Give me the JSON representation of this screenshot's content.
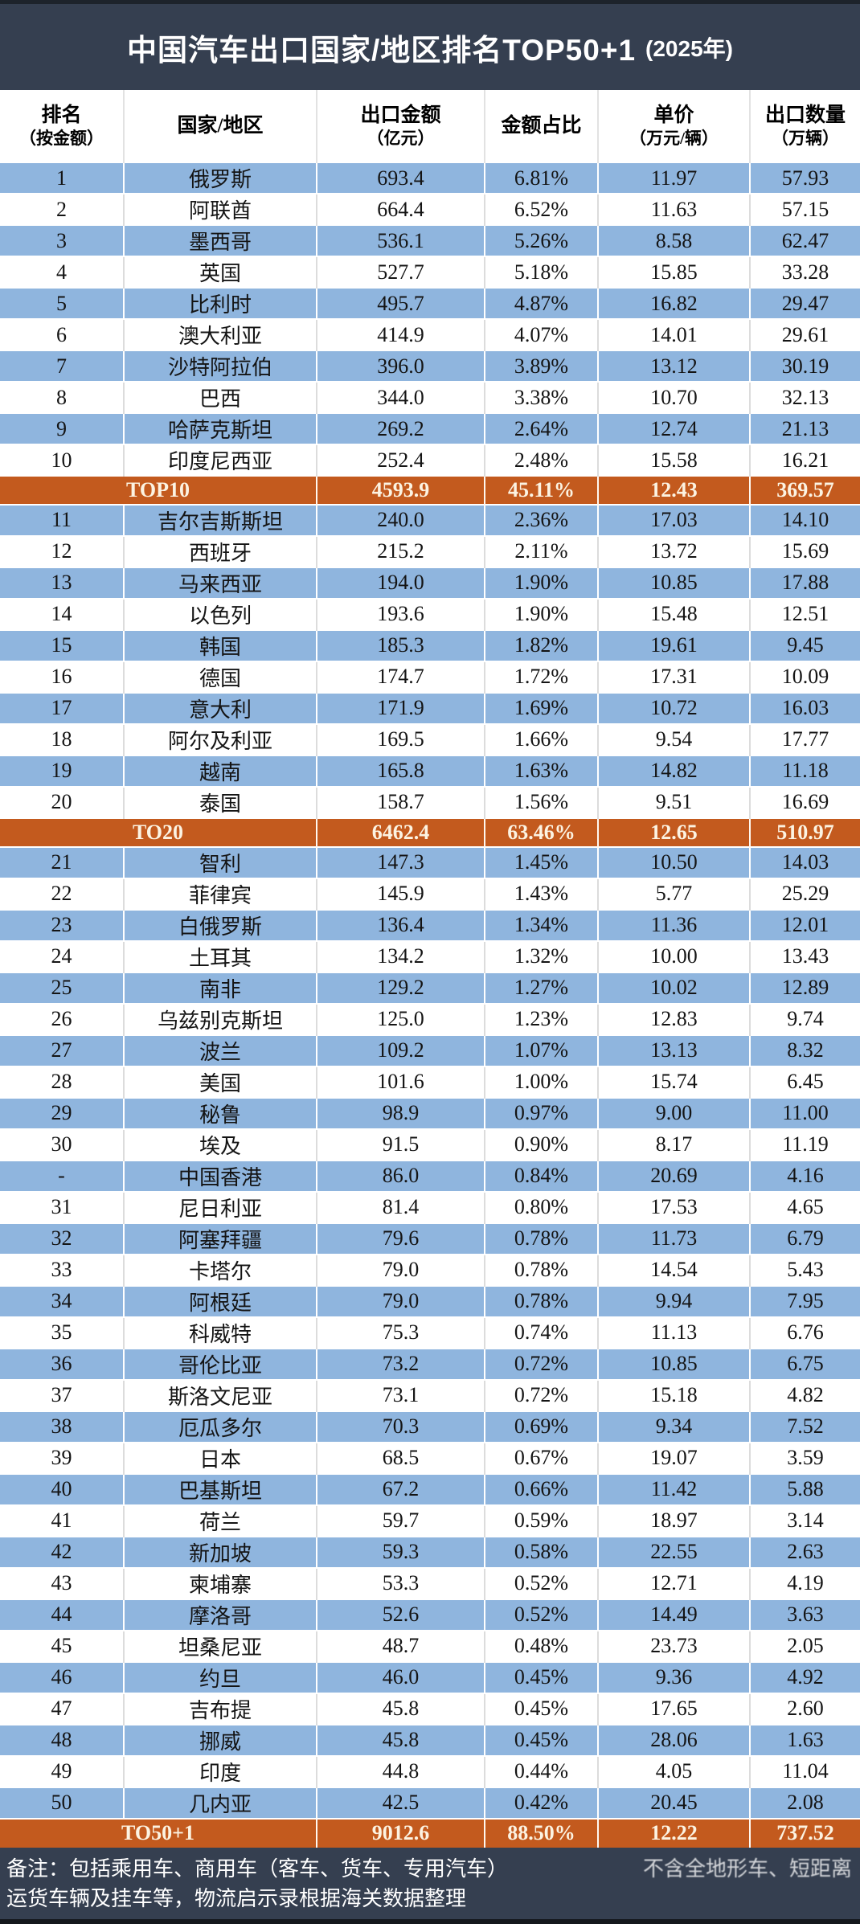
{
  "title": {
    "main": "中国汽车出口国家/地区排名TOP50+1",
    "year_suffix": "(2025年)"
  },
  "colors": {
    "band_dark": "#353F50",
    "row_blue": "#8FB5DE",
    "row_white": "#FFFFFF",
    "summary_orange": "#C35A1E",
    "summary_text": "#FCF3E2",
    "body_text": "#141414"
  },
  "footer": {
    "note_line1_left": "备注：包括乘用车、商用车（客车、货车、专用汽车）",
    "note_line1_right": "不含全地形车、短距离",
    "note_line2": "运货车辆及挂车等，物流启示录根据海关数据整理"
  },
  "chart_data": {
    "type": "table",
    "title": "中国汽车出口国家/地区排名TOP50+1 (2025年)",
    "columns": [
      {
        "line1": "排名",
        "line2": "（按金额）"
      },
      {
        "line1": "国家/地区",
        "line2": ""
      },
      {
        "line1": "出口金额",
        "line2": "（亿元）"
      },
      {
        "line1": "金额占比",
        "line2": ""
      },
      {
        "line1": "单价",
        "line2": "（万元/辆）"
      },
      {
        "line1": "出口数量",
        "line2": "（万辆）"
      }
    ],
    "rows": [
      {
        "type": "data",
        "rank": "1",
        "country": "俄罗斯",
        "amount": "693.4",
        "share": "6.81%",
        "price": "11.97",
        "qty": "57.93"
      },
      {
        "type": "data",
        "rank": "2",
        "country": "阿联酋",
        "amount": "664.4",
        "share": "6.52%",
        "price": "11.63",
        "qty": "57.15"
      },
      {
        "type": "data",
        "rank": "3",
        "country": "墨西哥",
        "amount": "536.1",
        "share": "5.26%",
        "price": "8.58",
        "qty": "62.47"
      },
      {
        "type": "data",
        "rank": "4",
        "country": "英国",
        "amount": "527.7",
        "share": "5.18%",
        "price": "15.85",
        "qty": "33.28"
      },
      {
        "type": "data",
        "rank": "5",
        "country": "比利时",
        "amount": "495.7",
        "share": "4.87%",
        "price": "16.82",
        "qty": "29.47"
      },
      {
        "type": "data",
        "rank": "6",
        "country": "澳大利亚",
        "amount": "414.9",
        "share": "4.07%",
        "price": "14.01",
        "qty": "29.61"
      },
      {
        "type": "data",
        "rank": "7",
        "country": "沙特阿拉伯",
        "amount": "396.0",
        "share": "3.89%",
        "price": "13.12",
        "qty": "30.19"
      },
      {
        "type": "data",
        "rank": "8",
        "country": "巴西",
        "amount": "344.0",
        "share": "3.38%",
        "price": "10.70",
        "qty": "32.13"
      },
      {
        "type": "data",
        "rank": "9",
        "country": "哈萨克斯坦",
        "amount": "269.2",
        "share": "2.64%",
        "price": "12.74",
        "qty": "21.13"
      },
      {
        "type": "data",
        "rank": "10",
        "country": "印度尼西亚",
        "amount": "252.4",
        "share": "2.48%",
        "price": "15.58",
        "qty": "16.21"
      },
      {
        "type": "summary",
        "label": "TOP10",
        "amount": "4593.9",
        "share": "45.11%",
        "price": "12.43",
        "qty": "369.57"
      },
      {
        "type": "data",
        "rank": "11",
        "country": "吉尔吉斯斯坦",
        "amount": "240.0",
        "share": "2.36%",
        "price": "17.03",
        "qty": "14.10"
      },
      {
        "type": "data",
        "rank": "12",
        "country": "西班牙",
        "amount": "215.2",
        "share": "2.11%",
        "price": "13.72",
        "qty": "15.69"
      },
      {
        "type": "data",
        "rank": "13",
        "country": "马来西亚",
        "amount": "194.0",
        "share": "1.90%",
        "price": "10.85",
        "qty": "17.88"
      },
      {
        "type": "data",
        "rank": "14",
        "country": "以色列",
        "amount": "193.6",
        "share": "1.90%",
        "price": "15.48",
        "qty": "12.51"
      },
      {
        "type": "data",
        "rank": "15",
        "country": "韩国",
        "amount": "185.3",
        "share": "1.82%",
        "price": "19.61",
        "qty": "9.45"
      },
      {
        "type": "data",
        "rank": "16",
        "country": "德国",
        "amount": "174.7",
        "share": "1.72%",
        "price": "17.31",
        "qty": "10.09"
      },
      {
        "type": "data",
        "rank": "17",
        "country": "意大利",
        "amount": "171.9",
        "share": "1.69%",
        "price": "10.72",
        "qty": "16.03"
      },
      {
        "type": "data",
        "rank": "18",
        "country": "阿尔及利亚",
        "amount": "169.5",
        "share": "1.66%",
        "price": "9.54",
        "qty": "17.77"
      },
      {
        "type": "data",
        "rank": "19",
        "country": "越南",
        "amount": "165.8",
        "share": "1.63%",
        "price": "14.82",
        "qty": "11.18"
      },
      {
        "type": "data",
        "rank": "20",
        "country": "泰国",
        "amount": "158.7",
        "share": "1.56%",
        "price": "9.51",
        "qty": "16.69"
      },
      {
        "type": "summary",
        "label": "TO20",
        "amount": "6462.4",
        "share": "63.46%",
        "price": "12.65",
        "qty": "510.97"
      },
      {
        "type": "data",
        "rank": "21",
        "country": "智利",
        "amount": "147.3",
        "share": "1.45%",
        "price": "10.50",
        "qty": "14.03"
      },
      {
        "type": "data",
        "rank": "22",
        "country": "菲律宾",
        "amount": "145.9",
        "share": "1.43%",
        "price": "5.77",
        "qty": "25.29"
      },
      {
        "type": "data",
        "rank": "23",
        "country": "白俄罗斯",
        "amount": "136.4",
        "share": "1.34%",
        "price": "11.36",
        "qty": "12.01"
      },
      {
        "type": "data",
        "rank": "24",
        "country": "土耳其",
        "amount": "134.2",
        "share": "1.32%",
        "price": "10.00",
        "qty": "13.43"
      },
      {
        "type": "data",
        "rank": "25",
        "country": "南非",
        "amount": "129.2",
        "share": "1.27%",
        "price": "10.02",
        "qty": "12.89"
      },
      {
        "type": "data",
        "rank": "26",
        "country": "乌兹别克斯坦",
        "amount": "125.0",
        "share": "1.23%",
        "price": "12.83",
        "qty": "9.74"
      },
      {
        "type": "data",
        "rank": "27",
        "country": "波兰",
        "amount": "109.2",
        "share": "1.07%",
        "price": "13.13",
        "qty": "8.32"
      },
      {
        "type": "data",
        "rank": "28",
        "country": "美国",
        "amount": "101.6",
        "share": "1.00%",
        "price": "15.74",
        "qty": "6.45"
      },
      {
        "type": "data",
        "rank": "29",
        "country": "秘鲁",
        "amount": "98.9",
        "share": "0.97%",
        "price": "9.00",
        "qty": "11.00"
      },
      {
        "type": "data",
        "rank": "30",
        "country": "埃及",
        "amount": "91.5",
        "share": "0.90%",
        "price": "8.17",
        "qty": "11.19"
      },
      {
        "type": "data",
        "rank": "-",
        "country": "中国香港",
        "amount": "86.0",
        "share": "0.84%",
        "price": "20.69",
        "qty": "4.16"
      },
      {
        "type": "data",
        "rank": "31",
        "country": "尼日利亚",
        "amount": "81.4",
        "share": "0.80%",
        "price": "17.53",
        "qty": "4.65"
      },
      {
        "type": "data",
        "rank": "32",
        "country": "阿塞拜疆",
        "amount": "79.6",
        "share": "0.78%",
        "price": "11.73",
        "qty": "6.79"
      },
      {
        "type": "data",
        "rank": "33",
        "country": "卡塔尔",
        "amount": "79.0",
        "share": "0.78%",
        "price": "14.54",
        "qty": "5.43"
      },
      {
        "type": "data",
        "rank": "34",
        "country": "阿根廷",
        "amount": "79.0",
        "share": "0.78%",
        "price": "9.94",
        "qty": "7.95"
      },
      {
        "type": "data",
        "rank": "35",
        "country": "科威特",
        "amount": "75.3",
        "share": "0.74%",
        "price": "11.13",
        "qty": "6.76"
      },
      {
        "type": "data",
        "rank": "36",
        "country": "哥伦比亚",
        "amount": "73.2",
        "share": "0.72%",
        "price": "10.85",
        "qty": "6.75"
      },
      {
        "type": "data",
        "rank": "37",
        "country": "斯洛文尼亚",
        "amount": "73.1",
        "share": "0.72%",
        "price": "15.18",
        "qty": "4.82"
      },
      {
        "type": "data",
        "rank": "38",
        "country": "厄瓜多尔",
        "amount": "70.3",
        "share": "0.69%",
        "price": "9.34",
        "qty": "7.52"
      },
      {
        "type": "data",
        "rank": "39",
        "country": "日本",
        "amount": "68.5",
        "share": "0.67%",
        "price": "19.07",
        "qty": "3.59"
      },
      {
        "type": "data",
        "rank": "40",
        "country": "巴基斯坦",
        "amount": "67.2",
        "share": "0.66%",
        "price": "11.42",
        "qty": "5.88"
      },
      {
        "type": "data",
        "rank": "41",
        "country": "荷兰",
        "amount": "59.7",
        "share": "0.59%",
        "price": "18.97",
        "qty": "3.14"
      },
      {
        "type": "data",
        "rank": "42",
        "country": "新加坡",
        "amount": "59.3",
        "share": "0.58%",
        "price": "22.55",
        "qty": "2.63"
      },
      {
        "type": "data",
        "rank": "43",
        "country": "柬埔寨",
        "amount": "53.3",
        "share": "0.52%",
        "price": "12.71",
        "qty": "4.19"
      },
      {
        "type": "data",
        "rank": "44",
        "country": "摩洛哥",
        "amount": "52.6",
        "share": "0.52%",
        "price": "14.49",
        "qty": "3.63"
      },
      {
        "type": "data",
        "rank": "45",
        "country": "坦桑尼亚",
        "amount": "48.7",
        "share": "0.48%",
        "price": "23.73",
        "qty": "2.05"
      },
      {
        "type": "data",
        "rank": "46",
        "country": "约旦",
        "amount": "46.0",
        "share": "0.45%",
        "price": "9.36",
        "qty": "4.92"
      },
      {
        "type": "data",
        "rank": "47",
        "country": "吉布提",
        "amount": "45.8",
        "share": "0.45%",
        "price": "17.65",
        "qty": "2.60"
      },
      {
        "type": "data",
        "rank": "48",
        "country": "挪威",
        "amount": "45.8",
        "share": "0.45%",
        "price": "28.06",
        "qty": "1.63"
      },
      {
        "type": "data",
        "rank": "49",
        "country": "印度",
        "amount": "44.8",
        "share": "0.44%",
        "price": "4.05",
        "qty": "11.04"
      },
      {
        "type": "data",
        "rank": "50",
        "country": "几内亚",
        "amount": "42.5",
        "share": "0.42%",
        "price": "20.45",
        "qty": "2.08"
      },
      {
        "type": "summary",
        "label": "TO50+1",
        "amount": "9012.6",
        "share": "88.50%",
        "price": "12.22",
        "qty": "737.52"
      }
    ]
  }
}
